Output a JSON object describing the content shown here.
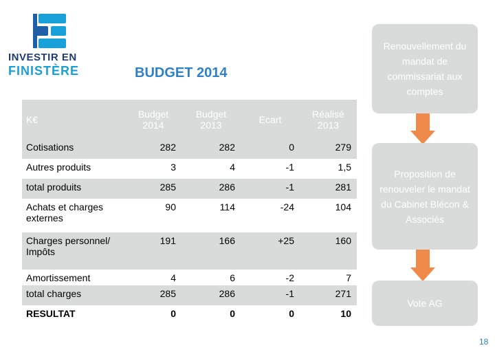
{
  "logo": {
    "line1": "INVESTIR EN",
    "line2": "FINISTÈRE",
    "colors": {
      "navy": "#1f3a73",
      "cyan": "#1aa0d8"
    }
  },
  "title": "BUDGET 2014",
  "table": {
    "headers": [
      "K€",
      "Budget 2014",
      "Budget 2013",
      "Ecart",
      "Réalisé 2013"
    ],
    "rows": [
      {
        "label": "Cotisations",
        "values": [
          "282",
          "282",
          "0",
          "279"
        ]
      },
      {
        "label": "Autres produits",
        "values": [
          "3",
          "4",
          "-1",
          "1,5"
        ]
      },
      {
        "label": "total produits",
        "values": [
          "285",
          "286",
          "-1",
          "281"
        ]
      },
      {
        "label": "Achats et charges externes",
        "values": [
          "90",
          "114",
          "-24",
          "104"
        ]
      },
      {
        "label": "Charges personnel/ Impôts",
        "values": [
          "191",
          "166",
          "+25",
          "160"
        ]
      },
      {
        "label": "Amortissement",
        "values": [
          "4",
          "6",
          "-2",
          "7"
        ]
      },
      {
        "label": "total charges",
        "values": [
          "285",
          "286",
          "-1",
          "271"
        ]
      },
      {
        "label": "RESULTAT",
        "values": [
          "0",
          "0",
          "0",
          "10"
        ]
      }
    ]
  },
  "steps": [
    "Renouvellement du mandat de commissariat aux comptes",
    "Proposition de renouveler le mandat du Cabinet Blécon & Associés",
    "Vote AG"
  ],
  "colors": {
    "panel": "#d9dada",
    "arrow": "#f08a4b",
    "title": "#2f80c4"
  },
  "page_number": "18"
}
